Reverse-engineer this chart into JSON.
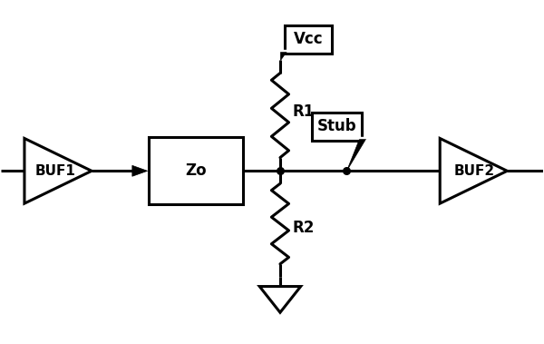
{
  "bg_color": "#ffffff",
  "line_color": "#000000",
  "line_width": 2.2,
  "fig_width": 6.0,
  "fig_height": 3.79,
  "dpi": 100,
  "buf1_label": "BUF1",
  "buf2_label": "BUF2",
  "zo_label": "Zo",
  "r1_label": "R1",
  "r2_label": "R2",
  "vcc_label": "Vcc",
  "stub_label": "Stub",
  "font_size": 12,
  "buf_font_size": 11
}
